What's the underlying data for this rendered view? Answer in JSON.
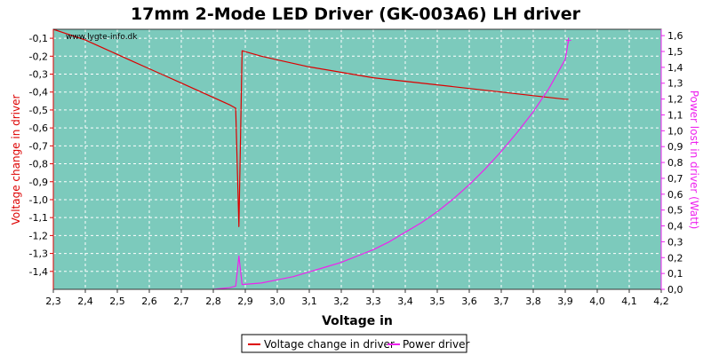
{
  "chart_data": {
    "type": "line",
    "title": "17mm 2-Mode LED Driver (GK-003A6) LH driver",
    "watermark": "www.lygte-info.dk",
    "xlabel": "Voltage in",
    "ylabel_left": "Voltage change in driver",
    "ylabel_right": "Power lost in driver (Watt)",
    "xlim": [
      2.3,
      4.2
    ],
    "ylim_left": [
      -1.5,
      -0.05
    ],
    "ylim_right": [
      0.0,
      1.64
    ],
    "x_ticks": [
      "2,3",
      "2,4",
      "2,5",
      "2,6",
      "2,7",
      "2,8",
      "2,9",
      "3,0",
      "3,1",
      "3,2",
      "3,3",
      "3,4",
      "3,5",
      "3,6",
      "3,7",
      "3,8",
      "3,9",
      "4,0",
      "4,1",
      "4,2"
    ],
    "y_left_ticks": [
      "-0,1",
      "-0,2",
      "-0,3",
      "-0,4",
      "-0,5",
      "-0,6",
      "-0,7",
      "-0,8",
      "-0,9",
      "-1,0",
      "-1,1",
      "-1,2",
      "-1,3",
      "-1,4"
    ],
    "y_right_ticks": [
      "0,0",
      "0,1",
      "0,2",
      "0,3",
      "0,4",
      "0,5",
      "0,6",
      "0,7",
      "0,8",
      "0,9",
      "1,0",
      "1,1",
      "1,2",
      "1,3",
      "1,4",
      "1,5",
      "1,6"
    ],
    "grid": true,
    "legend_position": "bottom-center",
    "colors": {
      "plot_background": "#7ccabc",
      "grid": "#ffffff",
      "voltage_series": "#dd0000",
      "power_series": "#ee22ee",
      "left_axis": "#dd0000",
      "right_axis": "#ee22ee"
    },
    "series": [
      {
        "name": "Voltage change in driver",
        "axis": "left",
        "x": [
          2.3,
          2.35,
          2.4,
          2.45,
          2.5,
          2.55,
          2.6,
          2.65,
          2.7,
          2.75,
          2.8,
          2.85,
          2.87,
          2.88,
          2.89,
          2.95,
          3.0,
          3.1,
          3.2,
          3.3,
          3.4,
          3.5,
          3.6,
          3.7,
          3.8,
          3.9,
          3.91
        ],
        "y": [
          -0.05,
          -0.08,
          -0.11,
          -0.15,
          -0.19,
          -0.23,
          -0.27,
          -0.31,
          -0.35,
          -0.39,
          -0.43,
          -0.47,
          -0.49,
          -1.15,
          -0.17,
          -0.2,
          -0.22,
          -0.26,
          -0.29,
          -0.32,
          -0.34,
          -0.36,
          -0.38,
          -0.4,
          -0.42,
          -0.44,
          -0.44
        ]
      },
      {
        "name": "Power driver",
        "axis": "right",
        "x": [
          2.8,
          2.85,
          2.87,
          2.88,
          2.89,
          2.95,
          3.0,
          3.05,
          3.1,
          3.15,
          3.2,
          3.25,
          3.3,
          3.35,
          3.4,
          3.45,
          3.5,
          3.55,
          3.6,
          3.65,
          3.7,
          3.75,
          3.8,
          3.85,
          3.9,
          3.91
        ],
        "y": [
          0.0,
          0.01,
          0.02,
          0.21,
          0.03,
          0.04,
          0.06,
          0.08,
          0.11,
          0.14,
          0.17,
          0.21,
          0.25,
          0.3,
          0.36,
          0.42,
          0.49,
          0.57,
          0.66,
          0.76,
          0.87,
          0.99,
          1.12,
          1.27,
          1.45,
          1.57
        ]
      }
    ]
  }
}
